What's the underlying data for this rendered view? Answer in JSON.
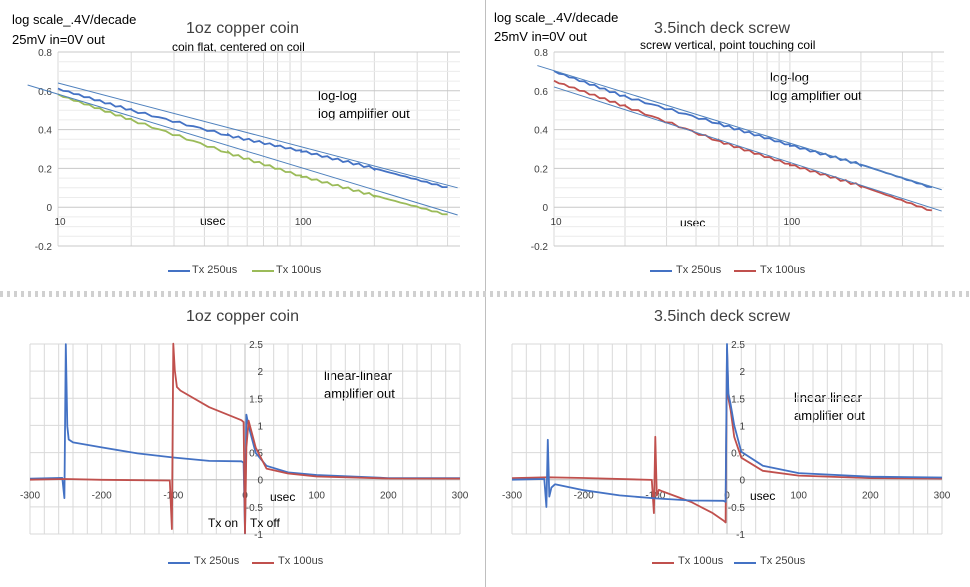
{
  "colors": {
    "series_blue": "#4472c4",
    "series_green": "#9bbb59",
    "series_red": "#c0504d",
    "grid": "#d9d9d9",
    "trend": "#4f81bd"
  },
  "charts": [
    {
      "id": "log-coin",
      "top_text": [
        "log scale_.4V/decade",
        "25mV in=0V out"
      ],
      "title": "1oz copper coin",
      "subtitle": "coin flat, centered on coil",
      "annotation": [
        "log-log",
        "log amplifier out"
      ],
      "axis_note": "usec",
      "legend": [
        "Tx 250us",
        "Tx 100us"
      ]
    },
    {
      "id": "log-screw",
      "top_text": [
        "log scale_.4V/decade",
        "25mV in=0V out"
      ],
      "title": "3.5inch deck screw",
      "subtitle": "screw vertical, point touching coil",
      "annotation": [
        "log-log",
        "log amplifier out"
      ],
      "axis_note": "usec",
      "legend": [
        "Tx 250us",
        "Tx 100us"
      ]
    },
    {
      "id": "lin-coin",
      "title": "1oz copper coin",
      "annotation": [
        "linear-linear",
        "amplifier out"
      ],
      "axis_note": "usec",
      "markers": [
        "Tx on",
        "Tx off"
      ],
      "legend": [
        "Tx 250us",
        "Tx 100us"
      ]
    },
    {
      "id": "lin-screw",
      "title": "3.5inch deck screw",
      "annotation": [
        "linear-linear",
        "amplifier out"
      ],
      "axis_note": "usec",
      "legend": [
        "Tx 100us",
        "Tx 250us"
      ]
    }
  ],
  "chart_data": [
    {
      "type": "line",
      "title": "1oz copper coin",
      "x_scale": "log",
      "xlim": [
        10,
        450
      ],
      "ylim": [
        -0.2,
        0.8
      ],
      "x_ticks": [
        "10",
        "100"
      ],
      "y_ticks": [
        "-0.2",
        "0",
        "0.2",
        "0.4",
        "0.6",
        "0.8"
      ],
      "series": [
        {
          "name": "Tx 250us",
          "color": "#4472c4",
          "x": [
            10,
            20,
            50,
            100,
            200,
            400
          ],
          "y": [
            0.61,
            0.5,
            0.37,
            0.29,
            0.2,
            0.1
          ]
        },
        {
          "name": "Tx 100us",
          "color": "#9bbb59",
          "x": [
            10,
            20,
            50,
            100,
            200,
            400
          ],
          "y": [
            0.58,
            0.45,
            0.28,
            0.16,
            0.06,
            -0.04
          ]
        }
      ],
      "trendlines": [
        {
          "x": [
            10,
            440
          ],
          "y": [
            0.64,
            0.1
          ]
        },
        {
          "x": [
            7.5,
            440
          ],
          "y": [
            0.63,
            -0.04
          ]
        }
      ]
    },
    {
      "type": "line",
      "title": "3.5inch deck screw",
      "x_scale": "log",
      "xlim": [
        10,
        450
      ],
      "ylim": [
        -0.2,
        0.8
      ],
      "x_ticks": [
        "10",
        "100"
      ],
      "y_ticks": [
        "-0.2",
        "0",
        "0.2",
        "0.4",
        "0.6",
        "0.8"
      ],
      "series": [
        {
          "name": "Tx 250us",
          "color": "#4472c4",
          "x": [
            10,
            20,
            50,
            100,
            200,
            400
          ],
          "y": [
            0.7,
            0.57,
            0.43,
            0.32,
            0.22,
            0.1
          ]
        },
        {
          "name": "Tx 100us",
          "color": "#c0504d",
          "x": [
            10,
            20,
            50,
            100,
            200,
            400
          ],
          "y": [
            0.65,
            0.52,
            0.34,
            0.22,
            0.11,
            -0.02
          ]
        }
      ],
      "trendlines": [
        {
          "x": [
            8.5,
            440
          ],
          "y": [
            0.73,
            0.09
          ]
        },
        {
          "x": [
            10,
            440
          ],
          "y": [
            0.62,
            -0.02
          ]
        }
      ]
    },
    {
      "type": "line",
      "title": "1oz copper coin",
      "xlim": [
        -300,
        300
      ],
      "ylim": [
        -1,
        2.5
      ],
      "x_ticks": [
        "-300",
        "-200",
        "-100",
        "0",
        "100",
        "200",
        "300"
      ],
      "y_ticks": [
        "-1",
        "-0.5",
        "0",
        "0.5",
        "1",
        "1.5",
        "2",
        "2.5"
      ],
      "series": [
        {
          "name": "Tx 250us",
          "color": "#4472c4",
          "x": [
            -300,
            -255,
            -252,
            -250,
            -248,
            -246,
            -240,
            -200,
            -150,
            -100,
            -50,
            -5,
            -2,
            0,
            2,
            5,
            15,
            30,
            60,
            100,
            200,
            300
          ],
          "y": [
            0.02,
            0.02,
            -0.35,
            2.5,
            1.0,
            0.75,
            0.68,
            0.58,
            0.48,
            0.42,
            0.36,
            0.34,
            0.3,
            -1.0,
            1.2,
            1.0,
            0.5,
            0.25,
            0.12,
            0.08,
            0.04,
            0.03
          ]
        },
        {
          "name": "Tx 100us",
          "color": "#c0504d",
          "x": [
            -300,
            -250,
            -200,
            -105,
            -102,
            -100,
            -98,
            -95,
            -90,
            -50,
            -5,
            -2,
            0,
            2,
            5,
            15,
            30,
            60,
            100,
            200,
            300
          ],
          "y": [
            0.0,
            0.0,
            0.0,
            0.0,
            -0.9,
            2.5,
            2.0,
            1.7,
            1.65,
            1.35,
            1.1,
            1.05,
            -1.0,
            0.6,
            1.1,
            0.6,
            0.2,
            0.1,
            0.05,
            0.03,
            0.02
          ]
        }
      ]
    },
    {
      "type": "line",
      "title": "3.5inch deck screw",
      "xlim": [
        -300,
        300
      ],
      "ylim": [
        -1,
        2.5
      ],
      "x_ticks": [
        "-300",
        "-200",
        "-100",
        "0",
        "100",
        "200",
        "300"
      ],
      "y_ticks": [
        "-1",
        "-0.5",
        "0",
        "0.5",
        "1",
        "1.5",
        "2",
        "2.5"
      ],
      "series": [
        {
          "name": "Tx 100us",
          "color": "#c0504d",
          "x": [
            -300,
            -250,
            -200,
            -105,
            -102,
            -100,
            -98,
            -95,
            -90,
            -50,
            -20,
            -5,
            -2,
            0,
            2,
            5,
            10,
            20,
            50,
            100,
            200,
            300
          ],
          "y": [
            0.03,
            0.03,
            0.02,
            0.0,
            -0.6,
            0.8,
            -0.3,
            -0.2,
            -0.22,
            -0.4,
            -0.6,
            -0.75,
            -0.8,
            2.4,
            1.5,
            1.3,
            0.8,
            0.4,
            0.15,
            0.07,
            0.04,
            0.02
          ]
        },
        {
          "name": "Tx 250us",
          "color": "#4472c4",
          "x": [
            -300,
            -255,
            -252,
            -250,
            -248,
            -245,
            -240,
            -200,
            -150,
            -100,
            -50,
            -5,
            -2,
            0,
            2,
            5,
            10,
            20,
            50,
            100,
            200,
            300
          ],
          "y": [
            0.0,
            0.0,
            -0.5,
            0.75,
            -0.3,
            -0.15,
            -0.1,
            -0.2,
            -0.28,
            -0.33,
            -0.38,
            -0.4,
            -0.42,
            2.5,
            1.6,
            1.4,
            1.0,
            0.5,
            0.25,
            0.13,
            0.07,
            0.04
          ]
        }
      ]
    }
  ]
}
